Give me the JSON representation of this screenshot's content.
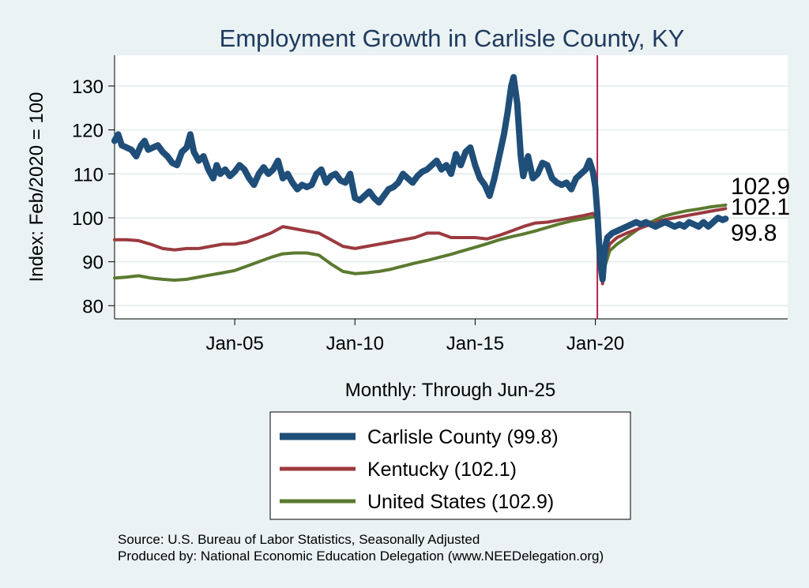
{
  "chart_data": {
    "type": "line",
    "title": "Employment Growth in Carlisle  County, KY",
    "xlabel": "Monthly: Through Jun-25",
    "ylabel": "Index: Feb/2020 = 100",
    "xlim": [
      2000.0,
      2028.0
    ],
    "ylim": [
      77,
      137
    ],
    "yticks": [
      80,
      90,
      100,
      110,
      120,
      130
    ],
    "xticks": [
      {
        "value": 2005.0,
        "label": "Jan-05"
      },
      {
        "value": 2010.0,
        "label": "Jan-10"
      },
      {
        "value": 2015.0,
        "label": "Jan-15"
      },
      {
        "value": 2020.0,
        "label": "Jan-20"
      }
    ],
    "reference_line": {
      "x": 2020.083,
      "color": "#b5224a"
    },
    "series": [
      {
        "name": "Carlisle  County",
        "legend": "Carlisle  County (99.8)",
        "end_label": "99.8",
        "color": "#1f4e79",
        "width": 8,
        "points": [
          [
            2000.0,
            117.5
          ],
          [
            2000.15,
            119
          ],
          [
            2000.3,
            116.5
          ],
          [
            2000.5,
            116
          ],
          [
            2000.7,
            115.5
          ],
          [
            2000.9,
            114
          ],
          [
            2001.1,
            116.5
          ],
          [
            2001.25,
            117.5
          ],
          [
            2001.4,
            115.5
          ],
          [
            2001.6,
            116
          ],
          [
            2001.8,
            116.5
          ],
          [
            2002.0,
            115
          ],
          [
            2002.2,
            114
          ],
          [
            2002.4,
            112.5
          ],
          [
            2002.6,
            112
          ],
          [
            2002.8,
            115
          ],
          [
            2003.0,
            116
          ],
          [
            2003.15,
            119
          ],
          [
            2003.3,
            115
          ],
          [
            2003.5,
            113
          ],
          [
            2003.7,
            114
          ],
          [
            2003.9,
            111
          ],
          [
            2004.1,
            109
          ],
          [
            2004.25,
            112
          ],
          [
            2004.4,
            110
          ],
          [
            2004.6,
            111
          ],
          [
            2004.8,
            109.5
          ],
          [
            2005.0,
            110.5
          ],
          [
            2005.2,
            112
          ],
          [
            2005.4,
            111
          ],
          [
            2005.6,
            109
          ],
          [
            2005.8,
            107.5
          ],
          [
            2006.0,
            110
          ],
          [
            2006.2,
            111.5
          ],
          [
            2006.4,
            110
          ],
          [
            2006.6,
            111
          ],
          [
            2006.8,
            113
          ],
          [
            2007.0,
            109
          ],
          [
            2007.2,
            110
          ],
          [
            2007.4,
            108
          ],
          [
            2007.6,
            106.5
          ],
          [
            2007.8,
            107.5
          ],
          [
            2008.0,
            107
          ],
          [
            2008.2,
            107.5
          ],
          [
            2008.4,
            110
          ],
          [
            2008.6,
            111
          ],
          [
            2008.8,
            108
          ],
          [
            2009.0,
            109.5
          ],
          [
            2009.2,
            110
          ],
          [
            2009.4,
            108.5
          ],
          [
            2009.6,
            108
          ],
          [
            2009.8,
            110
          ],
          [
            2010.0,
            104.5
          ],
          [
            2010.2,
            104
          ],
          [
            2010.4,
            105
          ],
          [
            2010.6,
            106
          ],
          [
            2010.8,
            104.5
          ],
          [
            2011.0,
            103.5
          ],
          [
            2011.2,
            105
          ],
          [
            2011.4,
            106.5
          ],
          [
            2011.6,
            107
          ],
          [
            2011.8,
            108
          ],
          [
            2012.0,
            110
          ],
          [
            2012.2,
            109
          ],
          [
            2012.4,
            108
          ],
          [
            2012.6,
            109.5
          ],
          [
            2012.8,
            110.5
          ],
          [
            2013.0,
            111
          ],
          [
            2013.2,
            112
          ],
          [
            2013.4,
            113
          ],
          [
            2013.6,
            111
          ],
          [
            2013.8,
            112
          ],
          [
            2014.0,
            110
          ],
          [
            2014.2,
            114.5
          ],
          [
            2014.4,
            112
          ],
          [
            2014.6,
            115
          ],
          [
            2014.8,
            116
          ],
          [
            2015.0,
            112
          ],
          [
            2015.2,
            109
          ],
          [
            2015.4,
            107.5
          ],
          [
            2015.6,
            105
          ],
          [
            2015.8,
            109
          ],
          [
            2016.0,
            114
          ],
          [
            2016.2,
            119
          ],
          [
            2016.35,
            124
          ],
          [
            2016.5,
            130
          ],
          [
            2016.6,
            132
          ],
          [
            2016.75,
            126
          ],
          [
            2016.9,
            114
          ],
          [
            2017.0,
            109.5
          ],
          [
            2017.2,
            114
          ],
          [
            2017.4,
            109
          ],
          [
            2017.6,
            110
          ],
          [
            2017.8,
            112.5
          ],
          [
            2018.0,
            112
          ],
          [
            2018.2,
            109
          ],
          [
            2018.4,
            108
          ],
          [
            2018.6,
            107.5
          ],
          [
            2018.8,
            108
          ],
          [
            2019.0,
            106.5
          ],
          [
            2019.2,
            109
          ],
          [
            2019.4,
            110
          ],
          [
            2019.6,
            111
          ],
          [
            2019.75,
            113
          ],
          [
            2019.9,
            110.5
          ],
          [
            2020.0,
            107
          ],
          [
            2020.083,
            101
          ],
          [
            2020.2,
            90
          ],
          [
            2020.3,
            86
          ],
          [
            2020.4,
            93
          ],
          [
            2020.5,
            95.5
          ],
          [
            2020.7,
            96.5
          ],
          [
            2020.9,
            97
          ],
          [
            2021.1,
            97.5
          ],
          [
            2021.3,
            98
          ],
          [
            2021.5,
            98.5
          ],
          [
            2021.7,
            99
          ],
          [
            2021.9,
            98.5
          ],
          [
            2022.1,
            99
          ],
          [
            2022.3,
            98.5
          ],
          [
            2022.5,
            98
          ],
          [
            2022.7,
            98.5
          ],
          [
            2022.9,
            99
          ],
          [
            2023.1,
            98.5
          ],
          [
            2023.3,
            98
          ],
          [
            2023.5,
            98.5
          ],
          [
            2023.7,
            98
          ],
          [
            2023.9,
            99
          ],
          [
            2024.1,
            98.5
          ],
          [
            2024.3,
            98
          ],
          [
            2024.5,
            99
          ],
          [
            2024.7,
            98
          ],
          [
            2024.9,
            99
          ],
          [
            2025.1,
            100
          ],
          [
            2025.3,
            99.5
          ],
          [
            2025.417,
            99.8
          ]
        ]
      },
      {
        "name": "Kentucky",
        "legend": "Kentucky (102.1)",
        "end_label": "102.1",
        "color": "#9b3a3f",
        "width": 4,
        "points": [
          [
            2000.0,
            95
          ],
          [
            2000.5,
            95
          ],
          [
            2001.0,
            94.8
          ],
          [
            2001.5,
            94
          ],
          [
            2002.0,
            93
          ],
          [
            2002.5,
            92.7
          ],
          [
            2003.0,
            93
          ],
          [
            2003.5,
            93
          ],
          [
            2004.0,
            93.5
          ],
          [
            2004.5,
            94
          ],
          [
            2005.0,
            94
          ],
          [
            2005.5,
            94.5
          ],
          [
            2006.0,
            95.5
          ],
          [
            2006.5,
            96.5
          ],
          [
            2007.0,
            98
          ],
          [
            2007.5,
            97.5
          ],
          [
            2008.0,
            97
          ],
          [
            2008.5,
            96.5
          ],
          [
            2009.0,
            95
          ],
          [
            2009.5,
            93.5
          ],
          [
            2010.0,
            93
          ],
          [
            2010.5,
            93.5
          ],
          [
            2011.0,
            94
          ],
          [
            2011.5,
            94.5
          ],
          [
            2012.0,
            95
          ],
          [
            2012.5,
            95.5
          ],
          [
            2013.0,
            96.5
          ],
          [
            2013.5,
            96.5
          ],
          [
            2014.0,
            95.5
          ],
          [
            2014.5,
            95.5
          ],
          [
            2015.0,
            95.5
          ],
          [
            2015.5,
            95.2
          ],
          [
            2016.0,
            96
          ],
          [
            2016.5,
            97
          ],
          [
            2017.0,
            98
          ],
          [
            2017.5,
            98.8
          ],
          [
            2018.0,
            99
          ],
          [
            2018.5,
            99.5
          ],
          [
            2019.0,
            100
          ],
          [
            2019.5,
            100.5
          ],
          [
            2019.9,
            101
          ],
          [
            2020.083,
            100
          ],
          [
            2020.2,
            90
          ],
          [
            2020.3,
            85
          ],
          [
            2020.4,
            91
          ],
          [
            2020.6,
            94
          ],
          [
            2020.9,
            95.5
          ],
          [
            2021.3,
            96.5
          ],
          [
            2021.8,
            97.5
          ],
          [
            2022.3,
            98.5
          ],
          [
            2022.8,
            99.5
          ],
          [
            2023.3,
            100
          ],
          [
            2023.8,
            100.5
          ],
          [
            2024.3,
            101
          ],
          [
            2024.8,
            101.5
          ],
          [
            2025.417,
            102.1
          ]
        ]
      },
      {
        "name": "United States",
        "legend": "United States (102.9)",
        "end_label": "102.9",
        "color": "#5b7a30",
        "width": 4,
        "points": [
          [
            2000.0,
            86.3
          ],
          [
            2000.5,
            86.5
          ],
          [
            2001.0,
            86.8
          ],
          [
            2001.5,
            86.3
          ],
          [
            2002.0,
            86
          ],
          [
            2002.5,
            85.8
          ],
          [
            2003.0,
            86
          ],
          [
            2003.5,
            86.5
          ],
          [
            2004.0,
            87
          ],
          [
            2004.5,
            87.5
          ],
          [
            2005.0,
            88
          ],
          [
            2005.5,
            89
          ],
          [
            2006.0,
            90
          ],
          [
            2006.5,
            91
          ],
          [
            2007.0,
            91.8
          ],
          [
            2007.5,
            92
          ],
          [
            2008.0,
            92
          ],
          [
            2008.5,
            91.5
          ],
          [
            2009.0,
            89.5
          ],
          [
            2009.5,
            87.8
          ],
          [
            2010.0,
            87.3
          ],
          [
            2010.5,
            87.5
          ],
          [
            2011.0,
            87.8
          ],
          [
            2011.5,
            88.3
          ],
          [
            2012.0,
            89
          ],
          [
            2012.5,
            89.7
          ],
          [
            2013.0,
            90.3
          ],
          [
            2013.5,
            91
          ],
          [
            2014.0,
            91.7
          ],
          [
            2014.5,
            92.5
          ],
          [
            2015.0,
            93.3
          ],
          [
            2015.5,
            94.1
          ],
          [
            2016.0,
            95
          ],
          [
            2016.5,
            95.7
          ],
          [
            2017.0,
            96.3
          ],
          [
            2017.5,
            97
          ],
          [
            2018.0,
            97.8
          ],
          [
            2018.5,
            98.6
          ],
          [
            2019.0,
            99.3
          ],
          [
            2019.5,
            99.8
          ],
          [
            2019.9,
            100.2
          ],
          [
            2020.083,
            100
          ],
          [
            2020.2,
            90
          ],
          [
            2020.3,
            85.5
          ],
          [
            2020.4,
            89
          ],
          [
            2020.6,
            92.5
          ],
          [
            2020.9,
            94
          ],
          [
            2021.3,
            95.5
          ],
          [
            2021.8,
            97.5
          ],
          [
            2022.3,
            99
          ],
          [
            2022.8,
            100.3
          ],
          [
            2023.3,
            101
          ],
          [
            2023.8,
            101.6
          ],
          [
            2024.3,
            102
          ],
          [
            2024.8,
            102.5
          ],
          [
            2025.417,
            102.9
          ]
        ]
      }
    ]
  },
  "source_line_1": "Source: U.S. Bureau of Labor Statistics, Seasonally Adjusted",
  "source_line_2": "Produced by: National Economic Education Delegation (www.NEEDelegation.org)"
}
